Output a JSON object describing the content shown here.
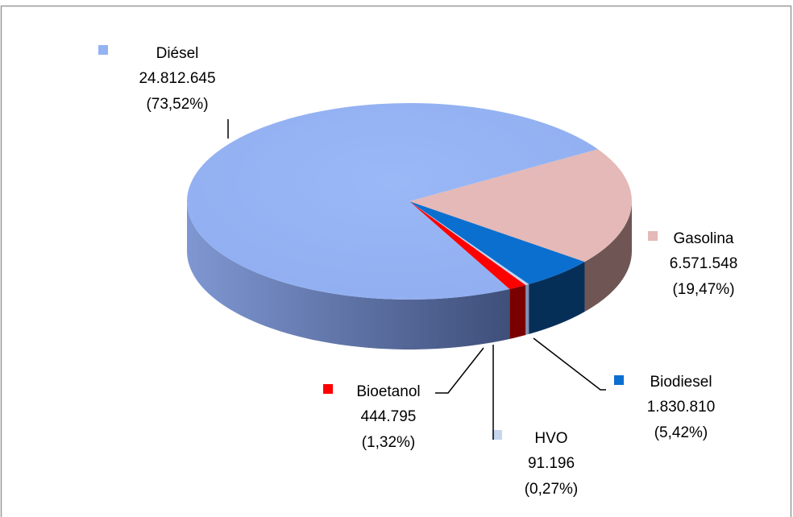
{
  "chart_data": {
    "type": "pie3d",
    "categories": [
      "Gasolina",
      "Biodiesel",
      "HVO",
      "Bioetanol",
      "Diésel"
    ],
    "values": [
      6571548,
      1830810,
      91196,
      444795,
      24812645
    ],
    "value_labels": [
      "6.571.548",
      "1.830.810",
      "91.196",
      "444.795",
      "24.812.645"
    ],
    "percents": [
      19.47,
      5.42,
      0.27,
      1.32,
      73.52
    ],
    "percent_labels": [
      "(19,47%)",
      "(5,42%)",
      "(0,27%)",
      "(1,32%)",
      "(73,52%)"
    ],
    "colors": [
      "#e4b9b7",
      "#0b6fcf",
      "#c6d5f0",
      "#ff0000",
      "#95b3f3"
    ]
  }
}
